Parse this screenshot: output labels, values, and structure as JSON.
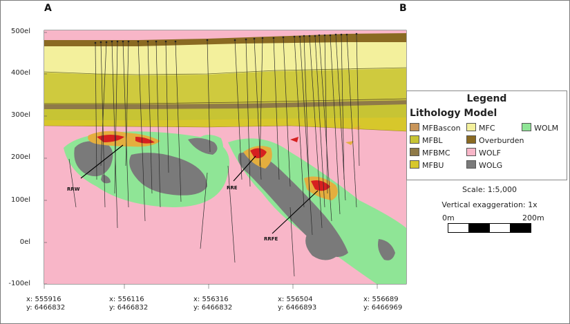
{
  "section": {
    "left_label": "A",
    "right_label": "B"
  },
  "y_axis": [
    "500el",
    "400el",
    "300el",
    "200el",
    "100el",
    "0el",
    "-100el"
  ],
  "x_axis": [
    {
      "x": "x: 555916",
      "y": "y: 6466832"
    },
    {
      "x": "x: 556116",
      "y": "y: 6466832"
    },
    {
      "x": "x: 556316",
      "y": "y: 6466832"
    },
    {
      "x": "x: 556504",
      "y": "y: 6466893"
    },
    {
      "x": "x: 556689",
      "y": "y: 6466969"
    }
  ],
  "zones": {
    "rrw": "RRW",
    "rre": "RRE",
    "rrfe": "RRFE"
  },
  "legend": {
    "title": "Legend",
    "subtitle": "Lithology Model",
    "items": [
      {
        "label": "MFBascon",
        "color": "#c8955a"
      },
      {
        "label": "MFC",
        "color": "#f3f09c"
      },
      {
        "label": "WOLM",
        "color": "#8fe596"
      },
      {
        "label": "MFBL",
        "color": "#c7c434"
      },
      {
        "label": "Overburden",
        "color": "#8a6a22"
      },
      {
        "label": "MFBMC",
        "color": "#8f7a48"
      },
      {
        "label": "WOLF",
        "color": "#f8b6c8"
      },
      {
        "label": "MFBU",
        "color": "#d7c72b"
      },
      {
        "label": "WOLG",
        "color": "#7a7a7a"
      }
    ]
  },
  "scale": {
    "ratio_text": "Scale: 1:5,000",
    "exaggeration_text": "Vertical exaggeration: 1x",
    "bar_start": "0m",
    "bar_end": "200m"
  }
}
